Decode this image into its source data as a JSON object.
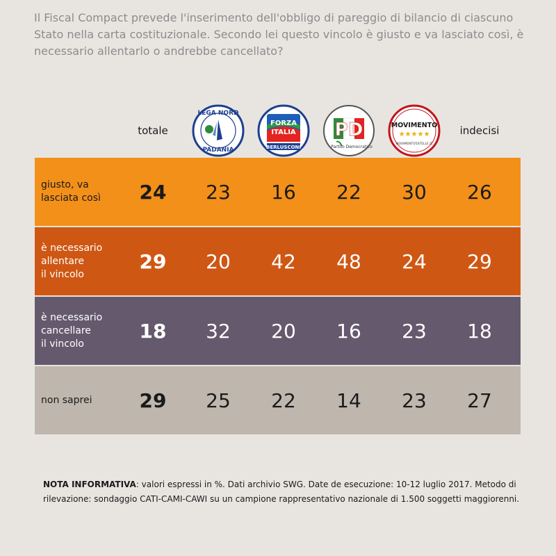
{
  "question": "Il Fiscal Compact prevede l'inserimento dell'obbligo di pareggio di bilancio di ciascuno Stato nella carta costituzionale. Secondo lei questo vincolo è giusto e va lasciato così, è necessario allentarlo o andrebbe cancellato?",
  "columns": [
    {
      "id": "totale",
      "label": "totale"
    },
    {
      "id": "lega",
      "logo": "lega-nord-logo",
      "logo_text_top": "LEGA NORD",
      "logo_text_bottom": "PADANIA"
    },
    {
      "id": "forza",
      "logo": "forza-italia-logo",
      "logo_text_top": "FORZA",
      "logo_text_mid": "ITALIA",
      "logo_text_bottom": "BERLUSCONI"
    },
    {
      "id": "pd",
      "logo": "pd-logo",
      "logo_text_top": "PD",
      "logo_text_bottom": "Partito Democratico"
    },
    {
      "id": "m5s",
      "logo": "m5s-logo",
      "logo_text_top": "MOVIMENTO",
      "logo_text_bottom": "MOVIMENTO5STELLE.IT"
    },
    {
      "id": "indecisi",
      "label": "indecisi"
    }
  ],
  "colors": {
    "row1": "#f39019",
    "row2": "#cf5714",
    "row3": "#655a6d",
    "row4": "#bfb7ae"
  },
  "chart_data": {
    "type": "table",
    "columns": [
      "totale",
      "Lega Nord",
      "Forza Italia",
      "PD",
      "Movimento 5 Stelle",
      "indecisi"
    ],
    "rows": [
      {
        "label": [
          "giusto, va",
          "lasciata così"
        ],
        "values": [
          24,
          23,
          16,
          22,
          30,
          26
        ]
      },
      {
        "label": [
          "è necessario",
          "allentare",
          "il vincolo"
        ],
        "values": [
          29,
          20,
          42,
          48,
          24,
          29
        ]
      },
      {
        "label": [
          "è necessario",
          "cancellare",
          "il vincolo"
        ],
        "values": [
          18,
          32,
          20,
          16,
          23,
          18
        ]
      },
      {
        "label": [
          "non saprei"
        ],
        "values": [
          29,
          25,
          22,
          14,
          23,
          27
        ]
      }
    ]
  },
  "note": {
    "bold": "NOTA INFORMATIVA",
    "text": ": valori espressi in %. Dati archivio SWG. Date de esecuzione: 10-12 luglio 2017. Metodo di rilevazione: sondaggio CATI-CAMI-CAWI su un campione rappresentativo nazionale di 1.500 soggetti maggiorenni."
  }
}
